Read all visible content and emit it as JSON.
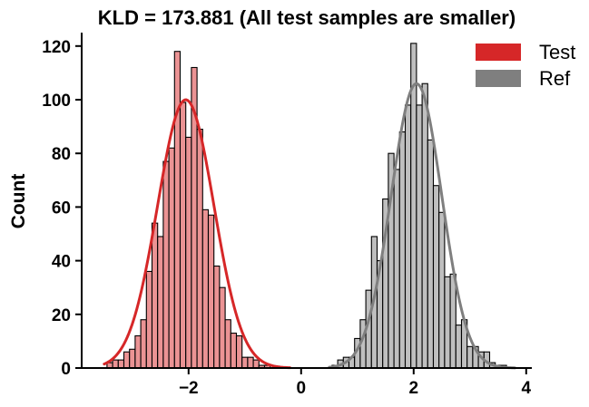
{
  "chart_data": {
    "type": "histogram",
    "title": "KLD = 173.881 (All test samples are smaller)",
    "xlabel": "",
    "ylabel": "Count",
    "xlim": [
      -3.9,
      4.1
    ],
    "ylim": [
      0,
      125
    ],
    "xticks": [
      -2,
      0,
      2,
      4
    ],
    "xtick_labels": [
      "−2",
      "0",
      "2",
      "4"
    ],
    "yticks": [
      0,
      20,
      40,
      60,
      80,
      100,
      120
    ],
    "ytick_labels": [
      "0",
      "20",
      "40",
      "60",
      "80",
      "100",
      "120"
    ],
    "grid": false,
    "legend_position": "top-right",
    "series": [
      {
        "name": "Test",
        "color": "#d62728",
        "bar_color": "#eb9394",
        "kde_mean": -2.05,
        "kde_std": 0.5,
        "kde_peak": 100,
        "kde_range": [
          -3.5,
          -0.2
        ],
        "bins": [
          {
            "x0": -3.45,
            "x1": -3.35,
            "count": 2
          },
          {
            "x0": -3.35,
            "x1": -3.25,
            "count": 3
          },
          {
            "x0": -3.25,
            "x1": -3.15,
            "count": 3
          },
          {
            "x0": -3.15,
            "x1": -3.05,
            "count": 6
          },
          {
            "x0": -3.05,
            "x1": -2.95,
            "count": 7
          },
          {
            "x0": -2.95,
            "x1": -2.85,
            "count": 12
          },
          {
            "x0": -2.85,
            "x1": -2.75,
            "count": 18
          },
          {
            "x0": -2.75,
            "x1": -2.65,
            "count": 36
          },
          {
            "x0": -2.65,
            "x1": -2.55,
            "count": 54
          },
          {
            "x0": -2.55,
            "x1": -2.45,
            "count": 49
          },
          {
            "x0": -2.45,
            "x1": -2.35,
            "count": 77
          },
          {
            "x0": -2.35,
            "x1": -2.25,
            "count": 82
          },
          {
            "x0": -2.25,
            "x1": -2.15,
            "count": 118
          },
          {
            "x0": -2.15,
            "x1": -2.05,
            "count": 99
          },
          {
            "x0": -2.05,
            "x1": -1.95,
            "count": 86
          },
          {
            "x0": -1.95,
            "x1": -1.85,
            "count": 112
          },
          {
            "x0": -1.85,
            "x1": -1.75,
            "count": 89
          },
          {
            "x0": -1.75,
            "x1": -1.65,
            "count": 59
          },
          {
            "x0": -1.65,
            "x1": -1.55,
            "count": 57
          },
          {
            "x0": -1.55,
            "x1": -1.45,
            "count": 38
          },
          {
            "x0": -1.45,
            "x1": -1.35,
            "count": 30
          },
          {
            "x0": -1.35,
            "x1": -1.25,
            "count": 18
          },
          {
            "x0": -1.25,
            "x1": -1.15,
            "count": 13
          },
          {
            "x0": -1.15,
            "x1": -1.05,
            "count": 12
          },
          {
            "x0": -1.05,
            "x1": -0.95,
            "count": 4
          },
          {
            "x0": -0.95,
            "x1": -0.85,
            "count": 4
          },
          {
            "x0": -0.85,
            "x1": -0.75,
            "count": 3
          },
          {
            "x0": -0.75,
            "x1": -0.65,
            "count": 1
          },
          {
            "x0": -0.65,
            "x1": -0.55,
            "count": 1
          }
        ]
      },
      {
        "name": "Ref",
        "color": "#7f7f7f",
        "bar_color": "#bfbfbf",
        "kde_mean": 2.05,
        "kde_std": 0.45,
        "kde_peak": 106,
        "kde_range": [
          0.5,
          3.8
        ],
        "bins": [
          {
            "x0": 0.55,
            "x1": 0.65,
            "count": 1
          },
          {
            "x0": 0.65,
            "x1": 0.75,
            "count": 3
          },
          {
            "x0": 0.75,
            "x1": 0.85,
            "count": 4
          },
          {
            "x0": 0.85,
            "x1": 0.95,
            "count": 4
          },
          {
            "x0": 0.95,
            "x1": 1.05,
            "count": 11
          },
          {
            "x0": 1.05,
            "x1": 1.15,
            "count": 18
          },
          {
            "x0": 1.15,
            "x1": 1.25,
            "count": 29
          },
          {
            "x0": 1.25,
            "x1": 1.35,
            "count": 49
          },
          {
            "x0": 1.35,
            "x1": 1.45,
            "count": 40
          },
          {
            "x0": 1.45,
            "x1": 1.55,
            "count": 63
          },
          {
            "x0": 1.55,
            "x1": 1.65,
            "count": 80
          },
          {
            "x0": 1.65,
            "x1": 1.75,
            "count": 74
          },
          {
            "x0": 1.75,
            "x1": 1.85,
            "count": 88
          },
          {
            "x0": 1.85,
            "x1": 1.95,
            "count": 98
          },
          {
            "x0": 1.95,
            "x1": 2.05,
            "count": 121
          },
          {
            "x0": 2.05,
            "x1": 2.15,
            "count": 98
          },
          {
            "x0": 2.15,
            "x1": 2.25,
            "count": 106
          },
          {
            "x0": 2.25,
            "x1": 2.35,
            "count": 85
          },
          {
            "x0": 2.35,
            "x1": 2.45,
            "count": 68
          },
          {
            "x0": 2.45,
            "x1": 2.55,
            "count": 58
          },
          {
            "x0": 2.55,
            "x1": 2.65,
            "count": 34
          },
          {
            "x0": 2.65,
            "x1": 2.75,
            "count": 35
          },
          {
            "x0": 2.75,
            "x1": 2.85,
            "count": 16
          },
          {
            "x0": 2.85,
            "x1": 2.95,
            "count": 18
          },
          {
            "x0": 2.95,
            "x1": 3.05,
            "count": 8
          },
          {
            "x0": 3.05,
            "x1": 3.15,
            "count": 8
          },
          {
            "x0": 3.15,
            "x1": 3.25,
            "count": 6
          },
          {
            "x0": 3.25,
            "x1": 3.35,
            "count": 6
          },
          {
            "x0": 3.35,
            "x1": 3.45,
            "count": 2
          },
          {
            "x0": 3.45,
            "x1": 3.55,
            "count": 1
          },
          {
            "x0": 3.55,
            "x1": 3.65,
            "count": 1
          }
        ]
      }
    ]
  }
}
